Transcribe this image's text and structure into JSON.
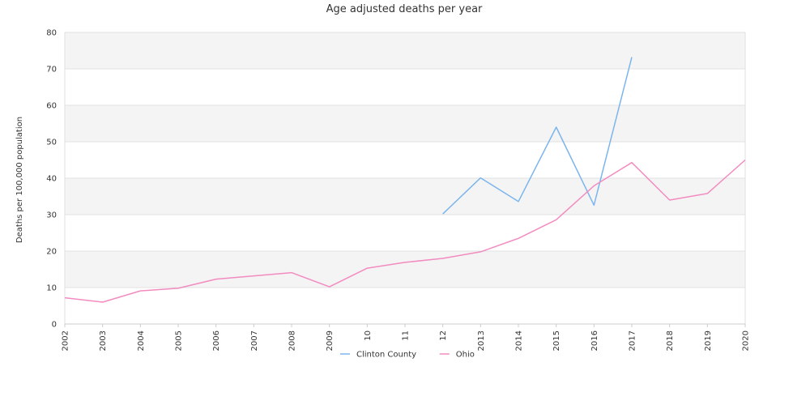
{
  "chart_data": {
    "type": "line",
    "title": "Age adjusted deaths per year",
    "xlabel": "",
    "ylabel": "Deaths per 100,000 population",
    "categories": [
      "2002",
      "2003",
      "2004",
      "2005",
      "2006",
      "2007",
      "2008",
      "2009",
      "10",
      "11",
      "12",
      "2013",
      "2014",
      "2015",
      "2016",
      "2017",
      "2018",
      "2019",
      "2020"
    ],
    "ylim": [
      0,
      80
    ],
    "yticks": [
      0,
      10,
      20,
      30,
      40,
      50,
      60,
      70,
      80
    ],
    "grid": true,
    "legend_position": "bottom",
    "series": [
      {
        "name": "Clinton County",
        "color": "#7cb5ec",
        "values": [
          null,
          null,
          null,
          null,
          null,
          null,
          null,
          null,
          null,
          null,
          30.2,
          40.1,
          33.6,
          54.0,
          32.6,
          73.2,
          null,
          null,
          null
        ]
      },
      {
        "name": "Ohio",
        "color": "#f28cc0",
        "values": [
          7.2,
          6.0,
          9.1,
          9.8,
          12.3,
          13.2,
          14.1,
          10.2,
          15.3,
          16.9,
          18.0,
          19.8,
          23.5,
          28.6,
          37.9,
          44.3,
          34.0,
          35.8,
          45.0
        ]
      }
    ]
  }
}
